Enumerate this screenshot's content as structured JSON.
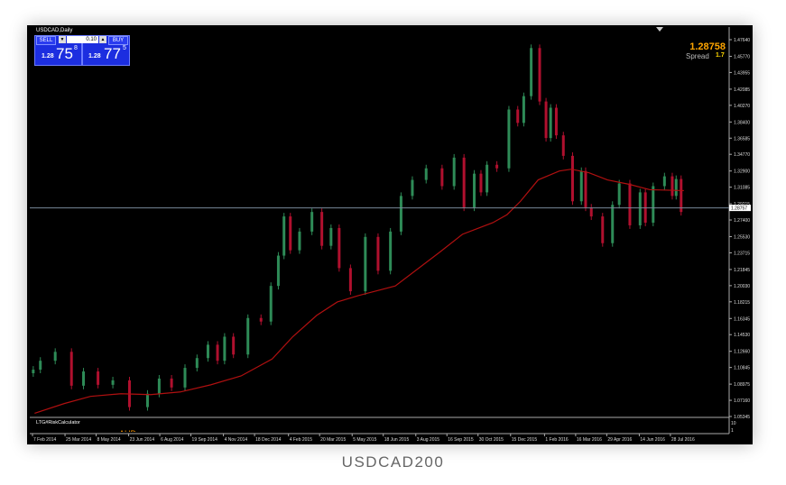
{
  "window": {
    "title": "USDCAD,Daily"
  },
  "caption": "USDCAD200",
  "one_click_trading": {
    "sell_label": "SELL",
    "buy_label": "BUY",
    "lot_size": "0.10",
    "sell_price": {
      "prefix": "1.28",
      "big": "75",
      "sup": "8"
    },
    "buy_price": {
      "prefix": "1.28",
      "big": "77",
      "sup": "5"
    }
  },
  "info": {
    "price": "1.28758",
    "spread_label": "Spread",
    "spread_value": "1.7"
  },
  "indicator": {
    "name": "LTG#RiskCalculator",
    "axis_labels": [
      "10",
      "1"
    ],
    "partial_text": "AUD"
  },
  "colors": {
    "background": "#000000",
    "bull_candle": "#2e8b57",
    "bear_candle": "#b0102e",
    "moving_average": "#b01010",
    "bid_line": "#778899",
    "price_text": "#ffa500",
    "panel": "#1c2ee0"
  },
  "chart_data": {
    "type": "candlestick",
    "symbol": "USDCAD",
    "timeframe": "Daily",
    "ylim": [
      1.05345,
      1.4764
    ],
    "y_ticks": [
      "1.47640",
      "1.45770",
      "1.43955",
      "1.42085",
      "1.40270",
      "1.38400",
      "1.36585",
      "1.34770",
      "1.32900",
      "1.31085",
      "1.29215",
      "1.27400",
      "1.25530",
      "1.23715",
      "1.21845",
      "1.20030",
      "1.18215",
      "1.16345",
      "1.14530",
      "1.12660",
      "1.10845",
      "1.08975",
      "1.07160",
      "1.05345"
    ],
    "x_ticks": [
      "7 Feb 2014",
      "25 Mar 2014",
      "8 May 2014",
      "23 Jun 2014",
      "6 Aug 2014",
      "19 Sep 2014",
      "4 Nov 2014",
      "18 Dec 2014",
      "4 Feb 2015",
      "20 Mar 2015",
      "5 May 2015",
      "18 Jun 2015",
      "3 Aug 2015",
      "16 Sep 2015",
      "30 Oct 2015",
      "15 Dec 2015",
      "1 Feb 2016",
      "16 Mar 2016",
      "29 Apr 2016",
      "14 Jun 2016",
      "28 Jul 2016"
    ],
    "current_price": 1.28757,
    "current_price_label": "1.28757",
    "close_series": [
      [
        "2014-02-10",
        1.106
      ],
      [
        "2014-02-25",
        1.116
      ],
      [
        "2014-03-24",
        1.126
      ],
      [
        "2014-04-12",
        1.088
      ],
      [
        "2014-04-27",
        1.104
      ],
      [
        "2014-05-23",
        1.089
      ],
      [
        "2014-06-08",
        1.094
      ],
      [
        "2014-07-09",
        1.064
      ],
      [
        "2014-07-29",
        1.079
      ],
      [
        "2014-08-11",
        1.096
      ],
      [
        "2014-09-02",
        1.086
      ],
      [
        "2014-09-18",
        1.108
      ],
      [
        "2014-10-06",
        1.119
      ],
      [
        "2014-10-19",
        1.134
      ],
      [
        "2014-11-02",
        1.116
      ],
      [
        "2014-11-08",
        1.143
      ],
      [
        "2014-11-27",
        1.123
      ],
      [
        "2014-12-19",
        1.164
      ],
      [
        "2015-01-03",
        1.16
      ],
      [
        "2015-01-16",
        1.2
      ],
      [
        "2015-01-24",
        1.234
      ],
      [
        "2015-02-01",
        1.278
      ],
      [
        "2015-02-11",
        1.24
      ],
      [
        "2015-02-27",
        1.261
      ],
      [
        "2015-03-18",
        1.283
      ],
      [
        "2015-03-27",
        1.245
      ],
      [
        "2015-04-13",
        1.265
      ],
      [
        "2015-04-19",
        1.22
      ],
      [
        "2015-05-15",
        1.194
      ],
      [
        "2015-05-31",
        1.255
      ],
      [
        "2015-06-20",
        1.217
      ],
      [
        "2015-07-05",
        1.261
      ],
      [
        "2015-07-20",
        1.301
      ],
      [
        "2015-08-06",
        1.319
      ],
      [
        "2015-08-28",
        1.332
      ],
      [
        "2015-09-20",
        1.312
      ],
      [
        "2015-10-01",
        1.344
      ],
      [
        "2015-10-18",
        1.288
      ],
      [
        "2015-10-30",
        1.326
      ],
      [
        "2015-11-06",
        1.305
      ],
      [
        "2015-11-16",
        1.336
      ],
      [
        "2015-12-04",
        1.332
      ],
      [
        "2015-12-20",
        1.398
      ],
      [
        "2015-12-29",
        1.383
      ],
      [
        "2016-01-06",
        1.413
      ],
      [
        "2016-01-19",
        1.467
      ],
      [
        "2016-01-30",
        1.407
      ],
      [
        "2016-02-06",
        1.366
      ],
      [
        "2016-02-12",
        1.4
      ],
      [
        "2016-02-22",
        1.369
      ],
      [
        "2016-03-03",
        1.346
      ],
      [
        "2016-03-19",
        1.295
      ],
      [
        "2016-03-28",
        1.329
      ],
      [
        "2016-03-31",
        1.288
      ],
      [
        "2016-04-13",
        1.278
      ],
      [
        "2016-05-02",
        1.248
      ],
      [
        "2016-05-11",
        1.291
      ],
      [
        "2016-05-21",
        1.315
      ],
      [
        "2016-06-10",
        1.268
      ],
      [
        "2016-06-19",
        1.305
      ],
      [
        "2016-06-25",
        1.271
      ],
      [
        "2016-07-11",
        1.312
      ],
      [
        "2016-07-27",
        1.323
      ],
      [
        "2016-08-02",
        1.301
      ],
      [
        "2016-08-07",
        1.32
      ],
      [
        "2016-08-16",
        1.283
      ]
    ],
    "moving_average": [
      [
        "2014-02-10",
        1.057
      ],
      [
        "2014-03-24",
        1.068
      ],
      [
        "2014-04-30",
        1.076
      ],
      [
        "2014-06-12",
        1.079
      ],
      [
        "2014-07-24",
        1.078
      ],
      [
        "2014-09-04",
        1.081
      ],
      [
        "2014-10-17",
        1.089
      ],
      [
        "2014-11-29",
        1.099
      ],
      [
        "2015-01-12",
        1.118
      ],
      [
        "2015-02-10",
        1.143
      ],
      [
        "2015-03-16",
        1.167
      ],
      [
        "2015-04-14",
        1.182
      ],
      [
        "2015-05-13",
        1.189
      ],
      [
        "2015-07-05",
        1.2
      ],
      [
        "2015-09-06",
        1.238
      ],
      [
        "2015-10-08",
        1.258
      ],
      [
        "2015-11-20",
        1.271
      ],
      [
        "2015-12-10",
        1.28
      ],
      [
        "2015-12-29",
        1.295
      ],
      [
        "2016-01-23",
        1.319
      ],
      [
        "2016-02-22",
        1.329
      ],
      [
        "2016-03-10",
        1.331
      ],
      [
        "2016-04-04",
        1.327
      ],
      [
        "2016-04-30",
        1.319
      ],
      [
        "2016-05-31",
        1.314
      ],
      [
        "2016-06-29",
        1.308
      ],
      [
        "2016-08-16",
        1.307
      ]
    ]
  }
}
